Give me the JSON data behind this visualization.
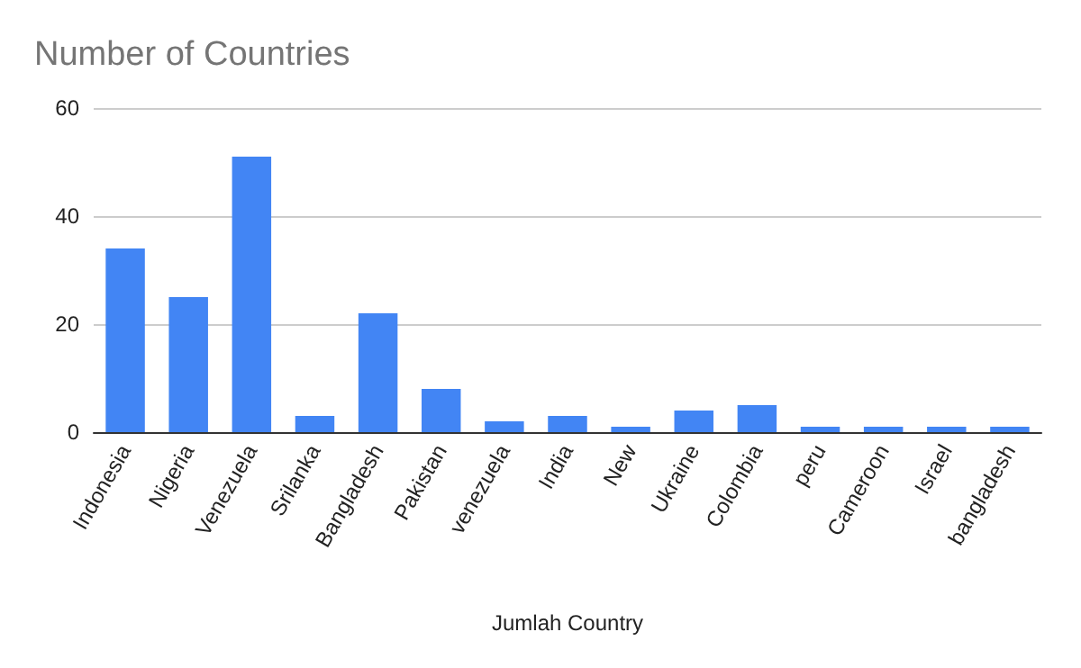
{
  "chart_data": {
    "type": "bar",
    "title": "Number of Countries",
    "xlabel": "Jumlah Country",
    "categories": [
      "Indonesia",
      "Nigeria",
      "Venezuela",
      "Srilanka",
      "Bangladesh",
      "Pakistan",
      "venezuela",
      "India",
      "New",
      "Ukraine",
      "Colombia",
      "peru",
      "Cameroon",
      "Israel",
      "bangladesh"
    ],
    "values": [
      34,
      25,
      51,
      3,
      22,
      8,
      2,
      3,
      1,
      4,
      5,
      1,
      1,
      1,
      1
    ],
    "color": "#4285f4",
    "ylim": [
      0,
      60
    ],
    "yticks": [
      0,
      20,
      40,
      60
    ],
    "grid": "y"
  }
}
